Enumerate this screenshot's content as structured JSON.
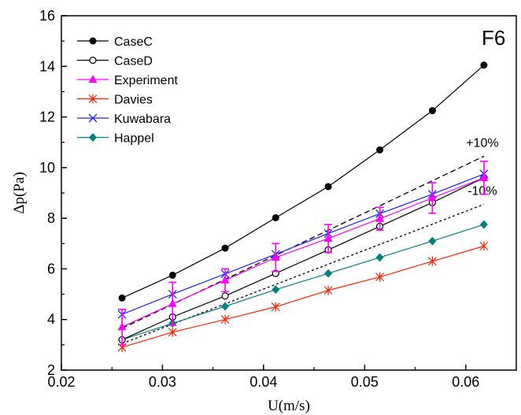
{
  "chart_data": {
    "type": "line",
    "panel_label": "F6",
    "xlabel": "U(m/s)",
    "ylabel": "Δp(Pa)",
    "xlim": [
      0.02,
      0.065
    ],
    "ylim": [
      2,
      16
    ],
    "x_ticks": [
      0.02,
      0.03,
      0.04,
      0.05,
      0.06
    ],
    "x_tick_labels": [
      "0.02",
      "0.03",
      "0.04",
      "0.05",
      "0.06"
    ],
    "y_ticks": [
      2,
      4,
      6,
      8,
      10,
      12,
      14,
      16
    ],
    "y_tick_labels": [
      "2",
      "4",
      "6",
      "8",
      "10",
      "12",
      "14",
      "16"
    ],
    "grid": false,
    "legend_position": "top-left",
    "x": [
      0.026,
      0.031,
      0.0362,
      0.0412,
      0.0464,
      0.0515,
      0.0567,
      0.0618
    ],
    "series": [
      {
        "name": "CaseC",
        "color": "#000000",
        "marker": "filled-circle",
        "values": [
          4.85,
          5.75,
          6.82,
          8.02,
          9.25,
          10.7,
          12.25,
          14.05
        ]
      },
      {
        "name": "CaseD",
        "color": "#000000",
        "marker": "open-circle",
        "values": [
          3.2,
          4.1,
          4.93,
          5.82,
          6.75,
          7.68,
          8.62,
          9.6
        ]
      },
      {
        "name": "Experiment",
        "color": "#ff00ff",
        "marker": "filled-triangle",
        "values": [
          3.7,
          4.62,
          5.55,
          6.45,
          7.2,
          7.98,
          8.8,
          9.6
        ],
        "errors": [
          0.7,
          0.85,
          0.45,
          0.55,
          0.55,
          0.45,
          0.6,
          0.65
        ]
      },
      {
        "name": "Davies",
        "color": "#ff2200",
        "marker": "asterisk",
        "values": [
          2.9,
          3.5,
          4.0,
          4.5,
          5.15,
          5.68,
          6.3,
          6.9
        ]
      },
      {
        "name": "Kuwabara",
        "color": "#2222ff",
        "marker": "x-cross",
        "values": [
          4.2,
          5.0,
          5.8,
          6.58,
          7.4,
          8.18,
          8.95,
          9.75
        ]
      },
      {
        "name": "Happel",
        "color": "#008080",
        "marker": "filled-diamond",
        "values": [
          3.2,
          3.85,
          4.52,
          5.18,
          5.82,
          6.45,
          7.1,
          7.75
        ]
      }
    ],
    "bands": [
      {
        "label": "+10%",
        "style": "dashed",
        "color": "#000000",
        "x": [
          0.026,
          0.0618
        ],
        "values": [
          3.65,
          10.45
        ]
      },
      {
        "label": "-10%",
        "style": "dotted",
        "color": "#000000",
        "x": [
          0.026,
          0.0618
        ],
        "values": [
          3.05,
          8.55
        ]
      }
    ]
  }
}
